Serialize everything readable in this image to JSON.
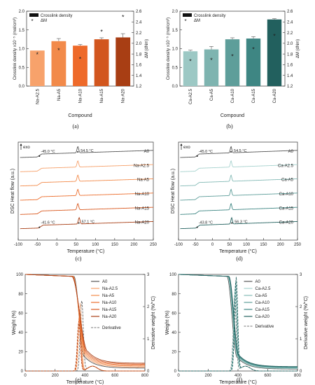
{
  "chart_data": [
    {
      "panel": "(a)",
      "type": "bar",
      "categories": [
        "Na-A2.5",
        "Na-A5",
        "Na-A10",
        "Na-A15",
        "Na-A20"
      ],
      "series": [
        {
          "name": "Crosslink density",
          "values": [
            0.95,
            1.2,
            1.08,
            1.25,
            1.3
          ],
          "error": [
            0.0,
            0.07,
            0.03,
            0.04,
            0.1
          ],
          "colors": [
            "#F7A26B",
            "#F28A4A",
            "#EE6A2A",
            "#D2561E",
            "#A83E14"
          ]
        },
        {
          "name": "ΔM",
          "type": "scatter",
          "axis": "right",
          "values": [
            1.8,
            1.88,
            1.72,
            2.23,
            2.5
          ]
        }
      ],
      "xlabel": "Compound",
      "ylabel": "Crosslink density x10⁻⁵ (mol/cm³)",
      "ylabel2": "ΔM (dNm)",
      "ylim": [
        0.0,
        2.0
      ],
      "yticks": [
        "0.0",
        "0.5",
        "1.0",
        "1.5",
        "2.0"
      ],
      "ylim2": [
        1.2,
        2.6
      ],
      "yticks2": [
        "1.2",
        "1.4",
        "1.6",
        "1.8",
        "2.0",
        "2.2",
        "2.4",
        "2.6"
      ],
      "legend": [
        "Crosslink density",
        "ΔM"
      ],
      "legend_position": "top-left"
    },
    {
      "panel": "(b)",
      "type": "bar",
      "categories": [
        "Ca-A2.5",
        "Ca-A5",
        "Ca-A10",
        "Ca-A15",
        "Ca-A20"
      ],
      "series": [
        {
          "name": "Crosslink density",
          "values": [
            0.93,
            0.98,
            1.25,
            1.27,
            1.78
          ],
          "error": [
            0.03,
            0.08,
            0.04,
            0.05,
            0.02
          ],
          "colors": [
            "#9CC8C4",
            "#7EB4B0",
            "#5E9E9A",
            "#3E8683",
            "#22605E"
          ]
        },
        {
          "name": "ΔM",
          "type": "scatter",
          "axis": "right",
          "values": [
            1.68,
            1.7,
            1.77,
            1.9,
            2.15
          ]
        }
      ],
      "xlabel": "Compound",
      "ylabel": "Crosslink density x10⁻⁵ (mol/cm³)",
      "ylabel2": "ΔM (dNm)",
      "ylim": [
        0.0,
        2.0
      ],
      "yticks": [
        "0.0",
        "0.5",
        "1.0",
        "1.5",
        "2.0"
      ],
      "ylim2": [
        1.2,
        2.6
      ],
      "yticks2": [
        "1.2",
        "1.4",
        "1.6",
        "1.8",
        "2.0",
        "2.2",
        "2.4",
        "2.6"
      ],
      "legend": [
        "Crosslink density",
        "ΔM"
      ],
      "legend_position": "top-left"
    },
    {
      "panel": "(c)",
      "type": "line",
      "xlabel": "Temperature (°C)",
      "ylabel": "DSC Heat flow (a.u.)",
      "xlim": [
        -100,
        250
      ],
      "xticks": [
        "-100",
        "-50",
        "0",
        "50",
        "100",
        "150",
        "200",
        "250"
      ],
      "exo_label": "exo",
      "series": [
        {
          "name": "A0",
          "color": "#555555"
        },
        {
          "name": "Na-A2.5",
          "color": "#F6A06A"
        },
        {
          "name": "Na-A5",
          "color": "#F28A4A"
        },
        {
          "name": "Na-A10",
          "color": "#EC6D2C"
        },
        {
          "name": "Na-A15",
          "color": "#D9581E"
        },
        {
          "name": "Na-A20",
          "color": "#A83E14"
        }
      ],
      "annotations": [
        {
          "text": "-45.0 °C",
          "x": -45.0,
          "series": "A0"
        },
        {
          "text": "54.5 °C",
          "x": 54.5,
          "series": "A0"
        },
        {
          "text": "-41.6 °C",
          "x": -41.6,
          "series": "Na-A20"
        },
        {
          "text": "57.1 °C",
          "x": 57.1,
          "series": "Na-A20"
        }
      ]
    },
    {
      "panel": "(d)",
      "type": "line",
      "xlabel": "Temperature (°C)",
      "ylabel": "DSC Heat flow (a.u.)",
      "xlim": [
        -100,
        250
      ],
      "xticks": [
        "-100",
        "-50",
        "0",
        "50",
        "100",
        "150",
        "200",
        "250"
      ],
      "exo_label": "exo",
      "series": [
        {
          "name": "A0",
          "color": "#555555"
        },
        {
          "name": "Ca-A2.5",
          "color": "#A6D2CE"
        },
        {
          "name": "Ca-A5",
          "color": "#84BAB6"
        },
        {
          "name": "Ca-A10",
          "color": "#5E9E9A"
        },
        {
          "name": "Ca-A15",
          "color": "#3E8683"
        },
        {
          "name": "Ca-A20",
          "color": "#22605E"
        }
      ],
      "annotations": [
        {
          "text": "-45.0 °C",
          "x": -45.0,
          "series": "A0"
        },
        {
          "text": "54.5 °C",
          "x": 54.5,
          "series": "A0"
        },
        {
          "text": "-43.8 °C",
          "x": -43.8,
          "series": "Ca-A20"
        },
        {
          "text": "56.3 °C",
          "x": 56.3,
          "series": "Ca-A20"
        }
      ]
    },
    {
      "panel": "(e)",
      "type": "line",
      "xlabel": "Temperature (°C)",
      "ylabel": "Weight (%)",
      "ylabel2": "Derivative weight (%/°C)",
      "xlim": [
        0,
        800
      ],
      "xticks": [
        "0",
        "200",
        "400",
        "600",
        "800"
      ],
      "ylim": [
        0,
        100
      ],
      "yticks": [
        "0",
        "20",
        "40",
        "60",
        "80",
        "100"
      ],
      "ylim2": [
        0,
        3
      ],
      "yticks2": [
        "0",
        "1",
        "2",
        "3"
      ],
      "series": [
        {
          "name": "A0",
          "color": "#555555",
          "onset": 325,
          "end": 395,
          "residue": 3.0,
          "peak_temp": 378,
          "peak_rate": 2.2
        },
        {
          "name": "Na-A2.5",
          "color": "#F6A06A",
          "onset": 320,
          "end": 400,
          "residue": 4.0,
          "peak_temp": 368,
          "peak_rate": 2.1
        },
        {
          "name": "Na-A5",
          "color": "#F28A4A",
          "onset": 318,
          "end": 405,
          "residue": 5.0,
          "peak_temp": 365,
          "peak_rate": 1.9
        },
        {
          "name": "Na-A10",
          "color": "#EC6D2C",
          "onset": 315,
          "end": 410,
          "residue": 6.0,
          "peak_temp": 362,
          "peak_rate": 1.7
        },
        {
          "name": "Na-A15",
          "color": "#D9581E",
          "onset": 312,
          "end": 415,
          "residue": 7.0,
          "peak_temp": 360,
          "peak_rate": 1.6
        },
        {
          "name": "Na-A20",
          "color": "#A83E14",
          "onset": 310,
          "end": 420,
          "residue": 8.0,
          "peak_temp": 358,
          "peak_rate": 1.5
        }
      ],
      "legend_extra": "Derivative",
      "legend_position": "top-right"
    },
    {
      "panel": "(f)",
      "type": "line",
      "xlabel": "Temperature (°C)",
      "ylabel": "Weight (%)",
      "ylabel2": "Derivative weight (%/°C)",
      "xlim": [
        0,
        800
      ],
      "xticks": [
        "0",
        "200",
        "400",
        "600",
        "800"
      ],
      "ylim": [
        0,
        100
      ],
      "yticks": [
        "0",
        "20",
        "40",
        "60",
        "80",
        "100"
      ],
      "ylim2": [
        0,
        3
      ],
      "yticks2": [
        "0",
        "1",
        "2",
        "3"
      ],
      "series": [
        {
          "name": "A0",
          "color": "#555555",
          "onset": 325,
          "end": 395,
          "residue": 2.0,
          "peak_temp": 378,
          "peak_rate": 2.3
        },
        {
          "name": "Ca-A2.5",
          "color": "#A6D2CE",
          "onset": 330,
          "end": 398,
          "residue": 2.5,
          "peak_temp": 380,
          "peak_rate": 2.5
        },
        {
          "name": "Ca-A5",
          "color": "#84BAB6",
          "onset": 332,
          "end": 400,
          "residue": 3.0,
          "peak_temp": 382,
          "peak_rate": 2.6
        },
        {
          "name": "Ca-A10",
          "color": "#5E9E9A",
          "onset": 334,
          "end": 402,
          "residue": 3.5,
          "peak_temp": 384,
          "peak_rate": 2.75
        },
        {
          "name": "Ca-A15",
          "color": "#3E8683",
          "onset": 336,
          "end": 404,
          "residue": 4.0,
          "peak_temp": 386,
          "peak_rate": 2.8
        },
        {
          "name": "Ca-A20",
          "color": "#22605E",
          "onset": 338,
          "end": 406,
          "residue": 4.5,
          "peak_temp": 388,
          "peak_rate": 2.9
        }
      ],
      "legend_extra": "Derivative",
      "legend_position": "right"
    }
  ]
}
